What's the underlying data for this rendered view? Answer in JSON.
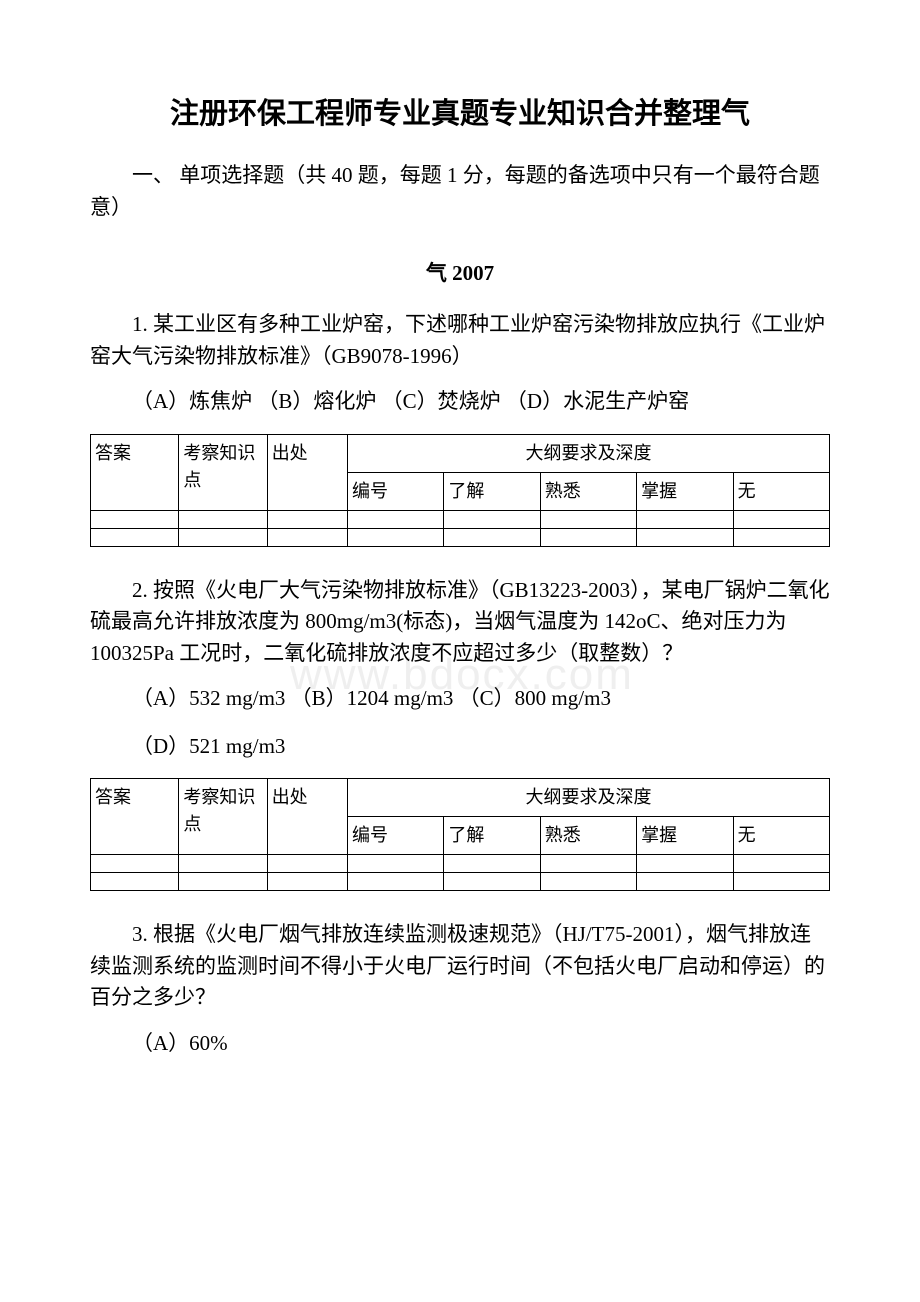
{
  "page": {
    "title": "注册环保工程师专业真题专业知识合并整理气",
    "intro": "一、 单项选择题（共 40 题，每题 1 分，每题的备选项中只有一个最符合题意）",
    "year": "气 2007",
    "watermark": "www.bdocx.com"
  },
  "questions": [
    {
      "text": "1. 某工业区有多种工业炉窑，下述哪种工业炉窑污染物排放应执行《工业炉窑大气污染物排放标准》（GB9078-1996）",
      "options": "（A）炼焦炉 （B）熔化炉 （C）焚烧炉 （D）水泥生产炉窑",
      "options_d": ""
    },
    {
      "text": "2. 按照《火电厂大气污染物排放标准》（GB13223-2003），某电厂锅炉二氧化硫最高允许排放浓度为 800mg/m3(标态)，当烟气温度为 142oC、绝对压力为 100325Pa 工况时，二氧化硫排放浓度不应超过多少（取整数）？",
      "options": "（A）532 mg/m3 （B）1204 mg/m3 （C）800 mg/m3",
      "options_d": "（D）521 mg/m3"
    },
    {
      "text": "3. 根据《火电厂烟气排放连续监测极速规范》（HJ/T75-2001），烟气排放连续监测系统的监测时间不得小于火电厂运行时间（不包括火电厂启动和停运）的百分之多少？",
      "options": "（A）60%",
      "options_d": ""
    }
  ],
  "table": {
    "headers": {
      "answer": "答案",
      "knowledge": "考察知识点",
      "source": "出处",
      "spec": "大纲要求及深度",
      "number": "编号",
      "understand": "了解",
      "familiar": "熟悉",
      "master": "掌握",
      "none": "无"
    }
  },
  "style": {
    "background_color": "#ffffff",
    "text_color": "#000000",
    "border_color": "#000000",
    "watermark_color": "#efefef",
    "title_fontsize": 29,
    "body_fontsize": 21,
    "table_fontsize": 18
  }
}
